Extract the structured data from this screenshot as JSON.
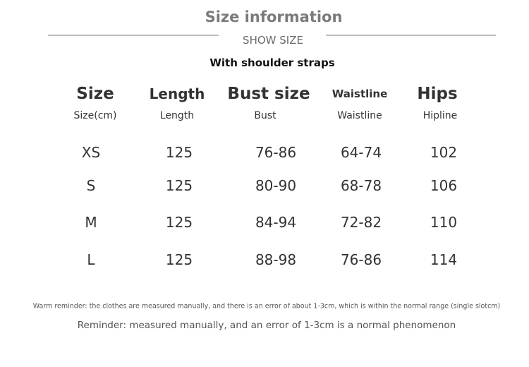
{
  "header": {
    "title": "Size information",
    "subtitle": "SHOW SIZE",
    "note": "With shoulder straps"
  },
  "table": {
    "headers": [
      "Size",
      "Length",
      "Bust size",
      "Waistline",
      "Hips"
    ],
    "subheaders": [
      "Size(cm)",
      "Length",
      "Bust",
      "Waistline",
      "Hipline"
    ],
    "rows": [
      [
        "XS",
        "125",
        "76-86",
        "64-74",
        "102"
      ],
      [
        "S",
        "125",
        "80-90",
        "68-78",
        "106"
      ],
      [
        "M",
        "125",
        "84-94",
        "72-82",
        "110"
      ],
      [
        "L",
        "125",
        "88-98",
        "76-86",
        "114"
      ]
    ]
  },
  "footer": {
    "warm_reminder": "Warm reminder: the clothes are measured manually, and there is an error of about 1-3cm, which is within the normal range (single slotcm)",
    "reminder": "Reminder:  measured manually, and an error of 1-3cm is a normal phenomenon"
  }
}
